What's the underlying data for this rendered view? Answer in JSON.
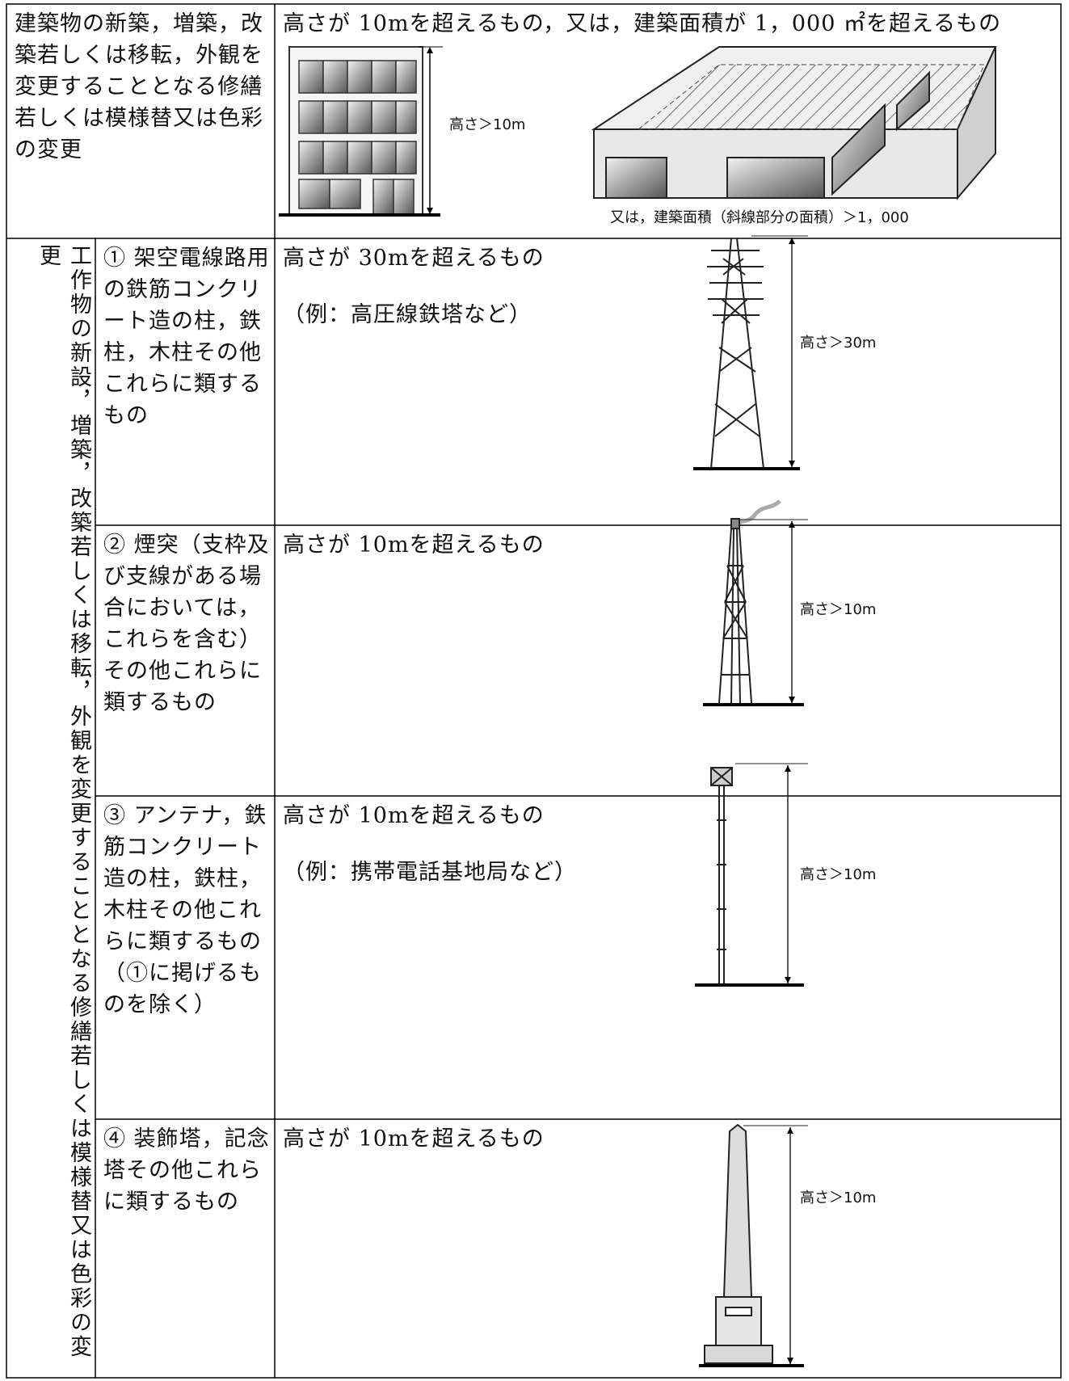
{
  "table": {
    "group_label": "工作物の新設，増築，改築若しくは移転，外観を変更することとなる修繕若しくは模様替又は色彩の変更",
    "rows": [
      {
        "target": "建築物の新築，増築，改築若しくは移転，外観を変更することとなる修繕若しくは模様替又は色彩の変更",
        "criteria": "高さが 10mを超えるもの，又は，建築面積が 1，000 ㎡を超えるもの",
        "height_label": "高さ＞10m",
        "area_label": "又は，建築面積（斜線部分の面積）＞1，000"
      },
      {
        "target": "① 架空電線路用の鉄筋コンクリート造の柱，鉄柱，木柱その他これらに類するもの",
        "criteria": "高さが 30mを超えるもの",
        "example": "（例：高圧線鉄塔など）",
        "height_label": "高さ＞30m"
      },
      {
        "target": "② 煙突（支枠及び支線がある場合においては，これらを含む）その他これらに類するもの",
        "criteria": "高さが 10mを超えるもの",
        "height_label": "高さ＞10m"
      },
      {
        "target": "③ アンテナ，鉄筋コンクリート造の柱，鉄柱，木柱その他これらに類するもの（①に掲げるものを除く）",
        "criteria": "高さが 10mを超えるもの",
        "example": "（例：携帯電話基地局など）",
        "height_label": "高さ＞10m"
      },
      {
        "target": "④ 装飾塔，記念塔その他これらに類するもの",
        "criteria": "高さが 10mを超えるもの",
        "height_label": "高さ＞10m"
      }
    ]
  }
}
